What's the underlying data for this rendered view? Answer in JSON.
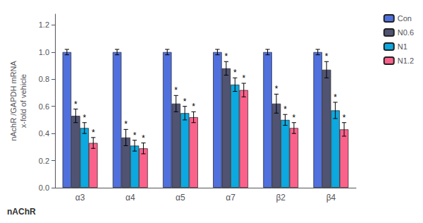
{
  "chart_data": {
    "type": "bar",
    "categories": [
      "α3",
      "α4",
      "α5",
      "α7",
      "β2",
      "β4"
    ],
    "series": [
      {
        "name": "Con",
        "values": [
          1.0,
          1.0,
          1.0,
          1.0,
          1.0,
          1.0
        ],
        "errors": [
          0.02,
          0.02,
          0.02,
          0.02,
          0.02,
          0.02
        ],
        "significance": [
          false,
          false,
          false,
          false,
          false,
          false
        ]
      },
      {
        "name": "N0.6",
        "values": [
          0.53,
          0.37,
          0.62,
          0.88,
          0.62,
          0.87
        ],
        "errors": [
          0.05,
          0.06,
          0.06,
          0.05,
          0.07,
          0.06
        ],
        "significance": [
          true,
          true,
          true,
          true,
          true,
          true
        ]
      },
      {
        "name": "N1",
        "values": [
          0.44,
          0.31,
          0.55,
          0.76,
          0.5,
          0.57
        ],
        "errors": [
          0.04,
          0.04,
          0.05,
          0.05,
          0.04,
          0.06
        ],
        "significance": [
          true,
          true,
          true,
          true,
          true,
          true
        ]
      },
      {
        "name": "N1.2",
        "values": [
          0.33,
          0.29,
          0.52,
          0.72,
          0.44,
          0.43
        ],
        "errors": [
          0.04,
          0.04,
          0.04,
          0.05,
          0.04,
          0.05
        ],
        "significance": [
          true,
          true,
          true,
          true,
          true,
          true
        ]
      }
    ],
    "ylabel": "nAchR /GAPDH mRNA\nx-fold of vehicle",
    "xlabel": "nAChR",
    "annotation": "*",
    "ylim": [
      0,
      1.28
    ],
    "yticks": [
      {
        "value": 0,
        "label": "0.0"
      },
      0.2,
      0.4,
      0.6,
      0.8,
      {
        "value": 1.0,
        "label": "1.0"
      },
      1.2
    ],
    "grid": false,
    "legend": "upper right"
  }
}
